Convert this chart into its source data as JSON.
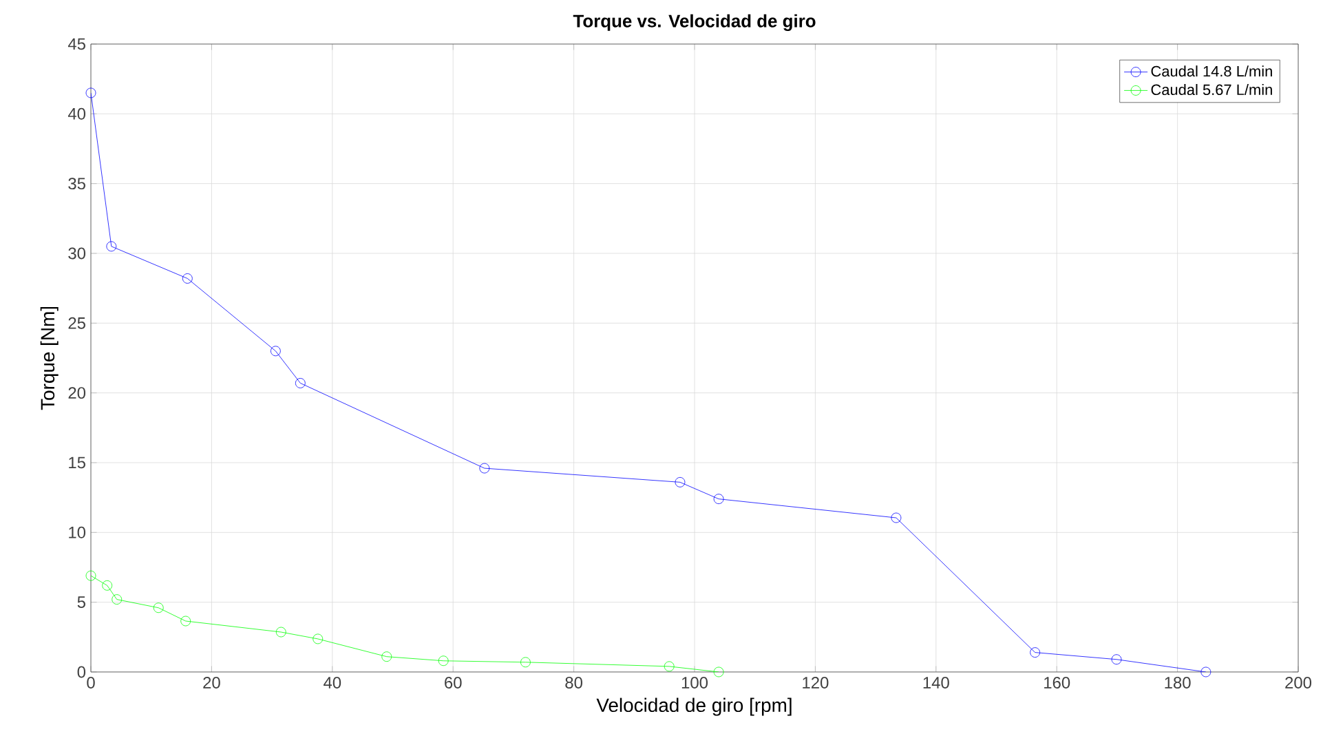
{
  "chart_data": {
    "type": "line",
    "title": "Torque vs. Velocidad de giro",
    "xlabel": "Velocidad de giro [rpm]",
    "ylabel": "Torque [Nm]",
    "xlim": [
      0,
      200
    ],
    "ylim": [
      0,
      45
    ],
    "xticks": [
      0,
      20,
      40,
      60,
      80,
      100,
      120,
      140,
      160,
      180,
      200
    ],
    "yticks": [
      0,
      5,
      10,
      15,
      20,
      25,
      30,
      35,
      40,
      45
    ],
    "grid": true,
    "legend": "top right",
    "marker": "circle",
    "line_style": "solid",
    "series": [
      {
        "name": "Caudal 14.8 L/min",
        "color": "#0000ff",
        "x": [
          0,
          3.4,
          16,
          30.6,
          34.7,
          65.2,
          97.6,
          104,
          133.4,
          156.4,
          169.9,
          184.7
        ],
        "values": [
          41.5,
          30.5,
          28.2,
          23,
          20.7,
          14.6,
          13.6,
          12.4,
          11.05,
          1.4,
          0.9,
          0
        ]
      },
      {
        "name": "Caudal 5.67 L/min",
        "color": "#00ff00",
        "x": [
          0,
          2.7,
          4.3,
          11.2,
          15.7,
          31.5,
          37.6,
          49,
          58.4,
          72,
          95.8,
          104
        ],
        "values": [
          6.9,
          6.2,
          5.2,
          4.6,
          3.65,
          2.86,
          2.37,
          1.1,
          0.8,
          0.7,
          0.4,
          0
        ]
      }
    ]
  }
}
